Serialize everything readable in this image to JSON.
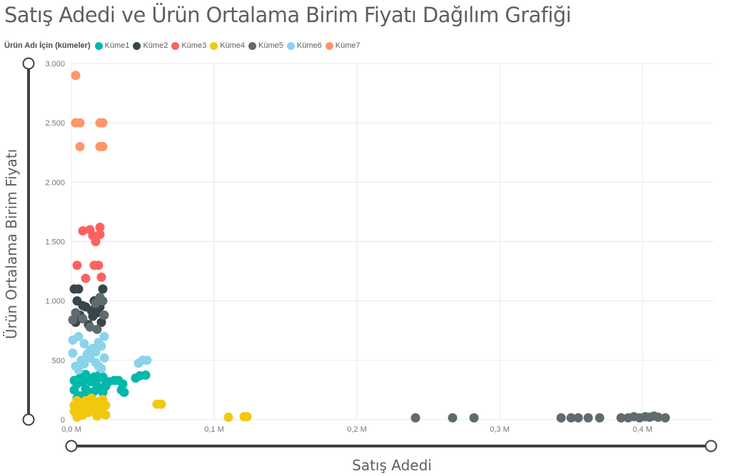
{
  "chart_data": {
    "type": "scatter",
    "title": "Satış Adedi ve Ürün Ortalama Birim Fiyatı Dağılım Grafiği",
    "xlabel": "Satış Adedi",
    "ylabel": "Ürün Ortalama Birim Fiyatı",
    "legend_title": "Ürün Adı İçin (kümeler)",
    "legend_position": "top-left",
    "grid": true,
    "xlim": [
      0,
      0.45
    ],
    "ylim": [
      0,
      3000
    ],
    "x_ticks": [
      0,
      0.1,
      0.2,
      0.3,
      0.4
    ],
    "x_tick_labels": [
      "0,0 M",
      "0,1 M",
      "0,2 M",
      "0,3 M",
      "0,4 M"
    ],
    "y_ticks": [
      0,
      500,
      1000,
      1500,
      2000,
      2500,
      3000
    ],
    "y_tick_labels": [
      "0",
      "500",
      "1.000",
      "1.500",
      "2.000",
      "2.500",
      "3.000"
    ],
    "series": [
      {
        "name": "Küme1",
        "color": "#01B8AA",
        "points": [
          [
            0.004,
            180
          ],
          [
            0.008,
            200
          ],
          [
            0.012,
            220
          ],
          [
            0.016,
            240
          ],
          [
            0.02,
            260
          ],
          [
            0.024,
            280
          ],
          [
            0.004,
            300
          ],
          [
            0.008,
            320
          ],
          [
            0.012,
            340
          ],
          [
            0.016,
            360
          ],
          [
            0.02,
            380
          ],
          [
            0.024,
            300
          ],
          [
            0.006,
            200
          ],
          [
            0.01,
            260
          ],
          [
            0.014,
            320
          ],
          [
            0.018,
            280
          ],
          [
            0.022,
            230
          ],
          [
            0.002,
            250
          ],
          [
            0.006,
            350
          ],
          [
            0.01,
            380
          ],
          [
            0.014,
            190
          ],
          [
            0.018,
            340
          ],
          [
            0.022,
            360
          ],
          [
            0.002,
            330
          ],
          [
            0.026,
            320
          ],
          [
            0.03,
            330
          ],
          [
            0.033,
            330
          ],
          [
            0.036,
            300
          ],
          [
            0.037,
            230
          ],
          [
            0.035,
            250
          ],
          [
            0.045,
            350
          ],
          [
            0.048,
            370
          ],
          [
            0.052,
            375
          ]
        ]
      },
      {
        "name": "Küme2",
        "color": "#374649",
        "points": [
          [
            0.003,
            820
          ],
          [
            0.006,
            880
          ],
          [
            0.01,
            950
          ],
          [
            0.015,
            870
          ],
          [
            0.018,
            900
          ],
          [
            0.021,
            820
          ],
          [
            0.004,
            1000
          ],
          [
            0.008,
            960
          ],
          [
            0.012,
            800
          ],
          [
            0.016,
            1000
          ],
          [
            0.02,
            950
          ],
          [
            0.002,
            1100
          ],
          [
            0.005,
            1100
          ],
          [
            0.022,
            1100
          ],
          [
            0.014,
            920
          ]
        ]
      },
      {
        "name": "Küme3",
        "color": "#FD625E",
        "points": [
          [
            0.008,
            1590
          ],
          [
            0.013,
            1600
          ],
          [
            0.015,
            1550
          ],
          [
            0.017,
            1500
          ],
          [
            0.02,
            1620
          ],
          [
            0.02,
            1560
          ],
          [
            0.004,
            1300
          ],
          [
            0.016,
            1300
          ],
          [
            0.019,
            1300
          ],
          [
            0.01,
            1190
          ],
          [
            0.021,
            1200
          ]
        ]
      },
      {
        "name": "Küme4",
        "color": "#F2C80F",
        "points": [
          [
            0.004,
            20
          ],
          [
            0.008,
            40
          ],
          [
            0.012,
            60
          ],
          [
            0.016,
            80
          ],
          [
            0.02,
            100
          ],
          [
            0.024,
            120
          ],
          [
            0.006,
            140
          ],
          [
            0.01,
            160
          ],
          [
            0.014,
            180
          ],
          [
            0.018,
            30
          ],
          [
            0.022,
            50
          ],
          [
            0.002,
            70
          ],
          [
            0.006,
            90
          ],
          [
            0.01,
            110
          ],
          [
            0.014,
            130
          ],
          [
            0.018,
            150
          ],
          [
            0.022,
            170
          ],
          [
            0.002,
            120
          ],
          [
            0.024,
            40
          ],
          [
            0.004,
            160
          ],
          [
            0.06,
            130
          ],
          [
            0.063,
            130
          ],
          [
            0.11,
            20
          ],
          [
            0.121,
            25
          ],
          [
            0.123,
            25
          ]
        ]
      },
      {
        "name": "Küme5",
        "color": "#5F6B6D",
        "points": [
          [
            0.003,
            900
          ],
          [
            0.008,
            850
          ],
          [
            0.013,
            780
          ],
          [
            0.017,
            980
          ],
          [
            0.02,
            1030
          ],
          [
            0.022,
            1000
          ],
          [
            0.023,
            880
          ],
          [
            0.018,
            760
          ],
          [
            0.001,
            840
          ],
          [
            0.241,
            15
          ],
          [
            0.267,
            15
          ],
          [
            0.282,
            15
          ],
          [
            0.343,
            15
          ],
          [
            0.35,
            15
          ],
          [
            0.355,
            15
          ],
          [
            0.362,
            15
          ],
          [
            0.37,
            15
          ],
          [
            0.385,
            15
          ],
          [
            0.39,
            15
          ],
          [
            0.394,
            25
          ],
          [
            0.398,
            15
          ],
          [
            0.402,
            25
          ],
          [
            0.405,
            20
          ],
          [
            0.408,
            30
          ],
          [
            0.411,
            20
          ],
          [
            0.416,
            15
          ]
        ]
      },
      {
        "name": "Küme6",
        "color": "#8AD4EB",
        "points": [
          [
            0.003,
            450
          ],
          [
            0.007,
            500
          ],
          [
            0.011,
            550
          ],
          [
            0.015,
            600
          ],
          [
            0.019,
            650
          ],
          [
            0.023,
            700
          ],
          [
            0.005,
            420
          ],
          [
            0.009,
            470
          ],
          [
            0.013,
            520
          ],
          [
            0.017,
            570
          ],
          [
            0.021,
            620
          ],
          [
            0.001,
            670
          ],
          [
            0.005,
            700
          ],
          [
            0.009,
            640
          ],
          [
            0.013,
            580
          ],
          [
            0.017,
            480
          ],
          [
            0.021,
            430
          ],
          [
            0.023,
            520
          ],
          [
            0.001,
            560
          ],
          [
            0.019,
            450
          ],
          [
            0.047,
            475
          ],
          [
            0.05,
            500
          ],
          [
            0.053,
            500
          ]
        ]
      },
      {
        "name": "Küme7",
        "color": "#FE9666",
        "points": [
          [
            0.003,
            2900
          ],
          [
            0.003,
            2500
          ],
          [
            0.006,
            2500
          ],
          [
            0.02,
            2500
          ],
          [
            0.022,
            2500
          ],
          [
            0.006,
            2300
          ],
          [
            0.02,
            2300
          ],
          [
            0.022,
            2300
          ]
        ]
      }
    ]
  }
}
